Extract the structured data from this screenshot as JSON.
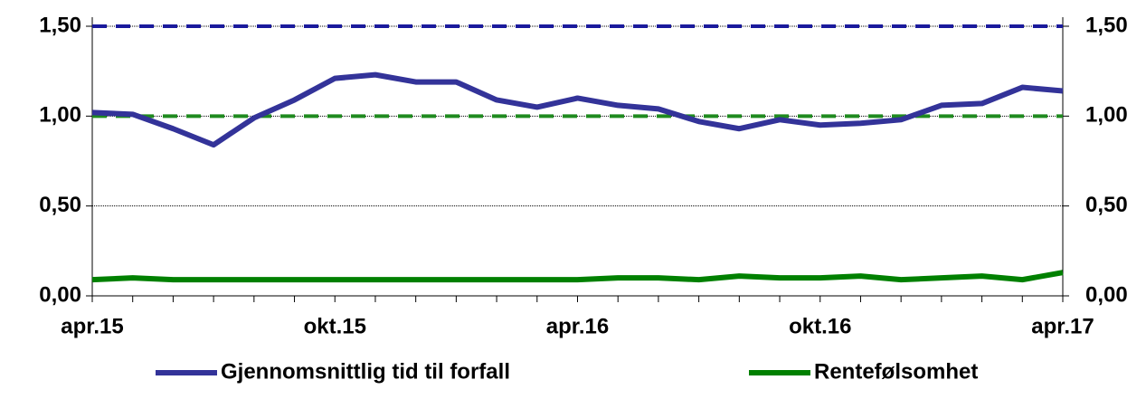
{
  "chart_data": {
    "type": "line",
    "categories": [
      "apr.15",
      null,
      null,
      null,
      null,
      null,
      "okt.15",
      null,
      null,
      null,
      null,
      null,
      "apr.16",
      null,
      null,
      null,
      null,
      null,
      "okt.16",
      null,
      null,
      null,
      null,
      null,
      "apr.17"
    ],
    "series": [
      {
        "name": "Gjennomsnittlig tid til forfall",
        "color": "#333399",
        "values": [
          1.02,
          1.01,
          0.93,
          0.84,
          0.99,
          1.09,
          1.21,
          1.23,
          1.19,
          1.19,
          1.09,
          1.05,
          1.1,
          1.06,
          1.04,
          0.97,
          0.93,
          0.98,
          0.95,
          0.96,
          0.98,
          1.06,
          1.07,
          1.16,
          1.14
        ]
      },
      {
        "name": "Rentefølsomhet",
        "color": "#008000",
        "values": [
          0.09,
          0.1,
          0.09,
          0.09,
          0.09,
          0.09,
          0.09,
          0.09,
          0.09,
          0.09,
          0.09,
          0.09,
          0.09,
          0.1,
          0.1,
          0.09,
          0.11,
          0.1,
          0.1,
          0.11,
          0.09,
          0.1,
          0.11,
          0.09,
          0.13
        ]
      }
    ],
    "reference_lines": [
      {
        "value": 1.5,
        "color": "#1a1a9c"
      },
      {
        "value": 1.0,
        "color": "#1f8a1f"
      }
    ],
    "ylim": [
      0,
      1.5
    ],
    "yticks": [
      {
        "value": 0,
        "label": "0,00"
      },
      {
        "value": 0.5,
        "label": "0,50"
      },
      {
        "value": 1.0,
        "label": "1,00"
      },
      {
        "value": 1.5,
        "label": "1,50"
      }
    ],
    "y2lim": [
      0,
      1.5
    ],
    "y2ticks": [
      {
        "value": 0,
        "label": "0,00"
      },
      {
        "value": 0.5,
        "label": "0,50"
      },
      {
        "value": 1.0,
        "label": "1,00"
      },
      {
        "value": 1.5,
        "label": "1,50"
      }
    ],
    "grid": true
  }
}
